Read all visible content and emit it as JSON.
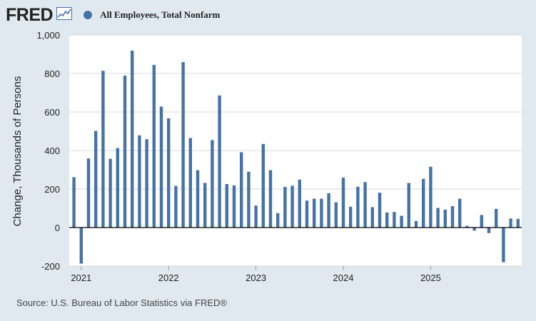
{
  "logo": {
    "text": "FRED",
    "icon": "line-chart-icon"
  },
  "legend": {
    "label": "All Employees, Total Nonfarm",
    "color": "#4572a7"
  },
  "source": "Source: U.S. Bureau of Labor Statistics via FRED®",
  "chart_data": {
    "type": "bar",
    "title": "All Employees, Total Nonfarm",
    "xlabel": "",
    "ylabel": "Change, Thousands of Persons",
    "ylim": [
      -200,
      1000
    ],
    "yticks": [
      -200,
      0,
      200,
      400,
      600,
      800,
      1000
    ],
    "ytick_labels": [
      "-200",
      "0",
      "200",
      "400",
      "600",
      "800",
      "1,000"
    ],
    "xticks": [
      "2021",
      "2022",
      "2023",
      "2024",
      "2025"
    ],
    "grid": true,
    "color": "#4572a7",
    "start": "2020-12",
    "values": [
      262,
      -187,
      359,
      502,
      814,
      357,
      413,
      789,
      919,
      479,
      459,
      844,
      628,
      567,
      216,
      859,
      465,
      298,
      232,
      454,
      686,
      226,
      219,
      391,
      290,
      114,
      434,
      298,
      75,
      211,
      217,
      249,
      140,
      150,
      150,
      178,
      131,
      259,
      108,
      212,
      236,
      106,
      181,
      78,
      81,
      61,
      231,
      34,
      253,
      316,
      102,
      93,
      111,
      150,
      9,
      -16,
      65,
      -29,
      97,
      -180,
      47,
      45
    ]
  }
}
